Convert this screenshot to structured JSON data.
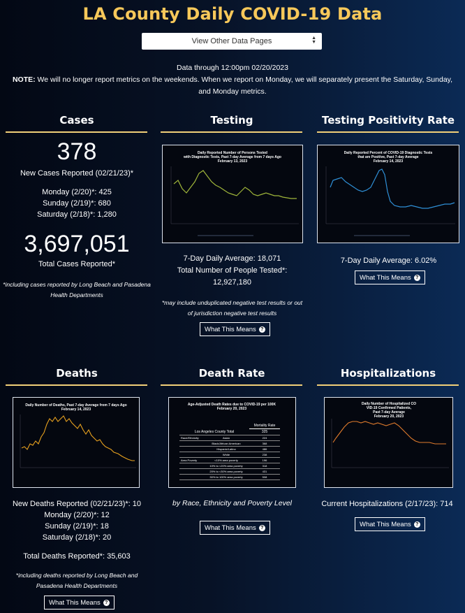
{
  "page": {
    "title": "LA County Daily COVID-19 Data",
    "select_label": "View Other Data Pages",
    "data_through": "Data through 12:00pm 02/20/2023",
    "note_label": "NOTE:",
    "note_text": " We will no longer report metrics on the weekends. When we report on Monday, we will separately present the Saturday, Sunday,",
    "note_text2": "and Monday metrics."
  },
  "cases": {
    "heading": "Cases",
    "new_cases": "378",
    "new_cases_label": "New Cases Reported (02/21/23)*",
    "monday": "Monday (2/20)*: 425",
    "sunday": "Sunday (2/19)*: 680",
    "saturday": "Saturday (2/18)*: 1,280",
    "total": "3,697,051",
    "total_label": "Total Cases Reported*",
    "footnote1": "*including cases reported by Long Beach and Pasadena",
    "footnote2": "Health Departments"
  },
  "testing": {
    "heading": "Testing",
    "chart_title1": "Daily Reported Number of Persons Tested",
    "chart_title2": "with Diagnostic Tests, Past 7-day Average from 7 days Ago",
    "chart_title3": "February 13, 2023",
    "avg": "7-Day Daily Average: 18,071",
    "total_label": "Total Number of People Tested*:",
    "total": "12,927,180",
    "footnote1": "*may include unduplicated negative test results or out",
    "footnote2": "of jurisdiction negative test results",
    "button": "What This Means"
  },
  "positivity": {
    "heading": "Testing Positivity Rate",
    "chart_title1": "Daily Reported Percent of COVID-19 Diagnostic Tests",
    "chart_title2": "that are Positive, Past 7-day Average",
    "chart_title3": "February 14, 2023",
    "avg": "7-Day Daily Average: 6.02%",
    "button": "What This Means"
  },
  "deaths": {
    "heading": "Deaths",
    "chart_title1": "Daily Number of Deaths, Past 7-day Average from 7 days Ago",
    "chart_title2": "February 14, 2023",
    "new": "New Deaths Reported (02/21/23)*: 10",
    "monday": "Monday (2/20)*: 12",
    "sunday": "Sunday (2/19)*: 18",
    "saturday": "Saturday (2/18)*: 20",
    "total": "Total Deaths Reported*: 35,603",
    "footnote1": "*including deaths reported by Long Beach and",
    "footnote2": "Pasadena Health Departments",
    "button": "What This Means"
  },
  "death_rate": {
    "heading": "Death Rate",
    "chart_title1": "Age-Adjusted Death Rates due to COVID-19 per 100K",
    "chart_title2": "February 20, 2023",
    "table_header": "Mortality Rate",
    "table_rows": [
      {
        "group": "Los Angeles County Total",
        "sub": "",
        "value": "325"
      },
      {
        "group": "Race/Ethnicity",
        "sub": "Asian",
        "value": "224"
      },
      {
        "group": "",
        "sub": "Black/African American",
        "value": "368"
      },
      {
        "group": "",
        "sub": "Hispanic/Latino",
        "value": "486"
      },
      {
        "group": "",
        "sub": "White",
        "value": "238"
      },
      {
        "group": "Area Poverty",
        "sub": "<10% area poverty",
        "value": "196"
      },
      {
        "group": "",
        "sub": "10% to <20% area poverty",
        "value": "318"
      },
      {
        "group": "",
        "sub": "20% to <30% area poverty",
        "value": "431"
      },
      {
        "group": "",
        "sub": "30% to 100% area poverty",
        "value": "508"
      }
    ],
    "caption": "by Race, Ethnicity and Poverty Level",
    "button": "What This Means"
  },
  "hospitalizations": {
    "heading": "Hospitalizations",
    "chart_title1": "Daily Number of Hospitalized CO",
    "chart_title2": "VID-19 Confirmed Patients,",
    "chart_title3": "Past 7-day Average",
    "chart_title4": "February 20, 2023",
    "current": "Current Hospitalizations (2/17/23): 714",
    "button": "What This Means"
  },
  "colors": {
    "accent": "#f7c85a",
    "rule": "#f1cf78",
    "testing_line": "#9fb53a",
    "positivity_line": "#2f8fd6",
    "deaths_line": "#e8a21f",
    "hosp_line": "#e07b2c"
  },
  "icons": {
    "help": "question-circle-icon",
    "select": "sort-arrows-icon"
  }
}
